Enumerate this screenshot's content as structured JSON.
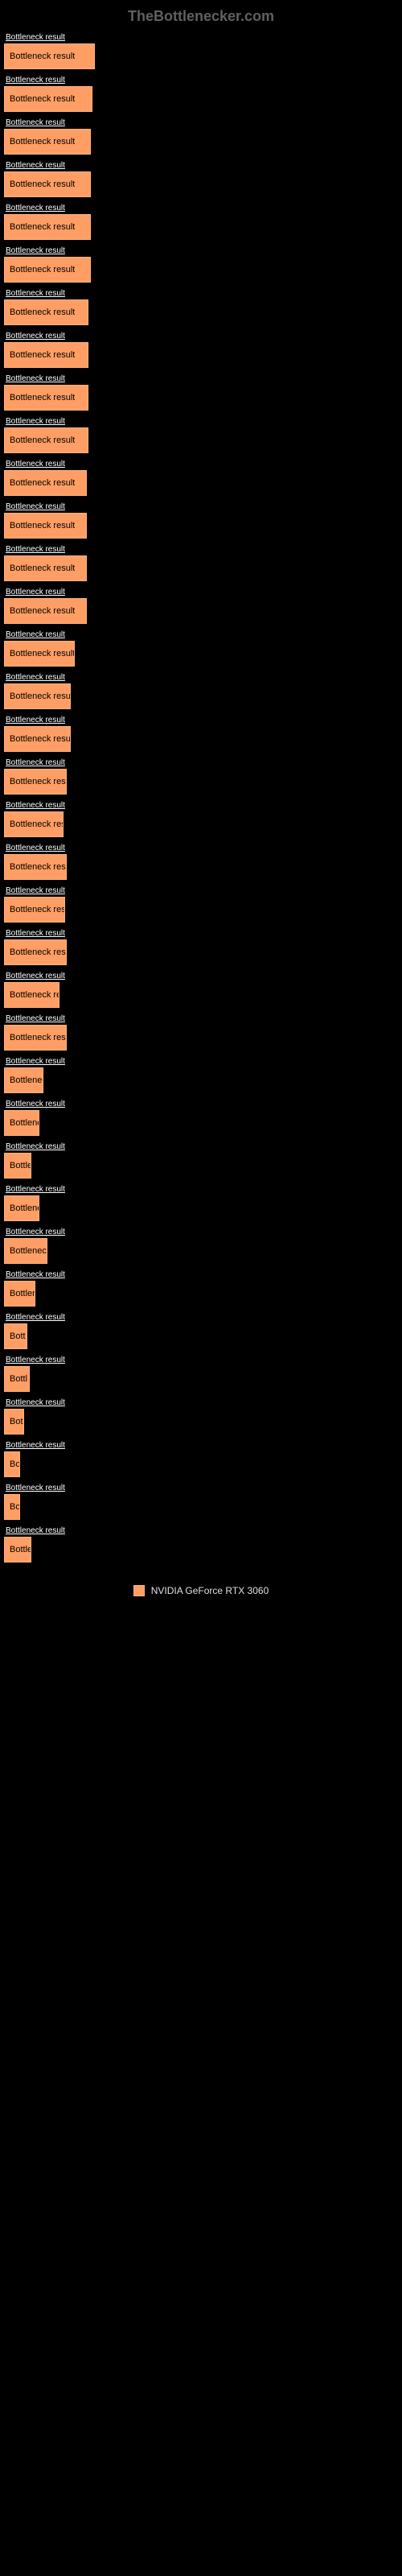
{
  "header": {
    "brand": "TheBottlenecker.com"
  },
  "chart": {
    "type": "bar",
    "bar_color": "#ff9e64",
    "bar_border_color": "#ffb380",
    "background_color": "#000000",
    "link_color": "#ffffff",
    "label_color": "#000000",
    "max_width_percent": 23,
    "bars": [
      {
        "link": "Bottleneck result",
        "label": "Bottleneck result",
        "width": 23
      },
      {
        "link": "Bottleneck result",
        "label": "Bottleneck result",
        "width": 22.5
      },
      {
        "link": "Bottleneck result",
        "label": "Bottleneck result",
        "width": 22
      },
      {
        "link": "Bottleneck result",
        "label": "Bottleneck result",
        "width": 22
      },
      {
        "link": "Bottleneck result",
        "label": "Bottleneck result",
        "width": 22
      },
      {
        "link": "Bottleneck result",
        "label": "Bottleneck result",
        "width": 22
      },
      {
        "link": "Bottleneck result",
        "label": "Bottleneck result",
        "width": 21.5
      },
      {
        "link": "Bottleneck result",
        "label": "Bottleneck result",
        "width": 21.5
      },
      {
        "link": "Bottleneck result",
        "label": "Bottleneck result",
        "width": 21.5
      },
      {
        "link": "Bottleneck result",
        "label": "Bottleneck result",
        "width": 21.5
      },
      {
        "link": "Bottleneck result",
        "label": "Bottleneck result",
        "width": 21
      },
      {
        "link": "Bottleneck result",
        "label": "Bottleneck result",
        "width": 21
      },
      {
        "link": "Bottleneck result",
        "label": "Bottleneck result",
        "width": 21
      },
      {
        "link": "Bottleneck result",
        "label": "Bottleneck result",
        "width": 21
      },
      {
        "link": "Bottleneck result",
        "label": "Bottleneck result",
        "width": 18
      },
      {
        "link": "Bottleneck result",
        "label": "Bottleneck result",
        "width": 17
      },
      {
        "link": "Bottleneck result",
        "label": "Bottleneck result",
        "width": 17
      },
      {
        "link": "Bottleneck result",
        "label": "Bottleneck result",
        "width": 16
      },
      {
        "link": "Bottleneck result",
        "label": "Bottleneck res",
        "width": 15
      },
      {
        "link": "Bottleneck result",
        "label": "Bottleneck result",
        "width": 16
      },
      {
        "link": "Bottleneck result",
        "label": "Bottleneck resul",
        "width": 15.5
      },
      {
        "link": "Bottleneck result",
        "label": "Bottleneck result",
        "width": 16
      },
      {
        "link": "Bottleneck result",
        "label": "Bottleneck res",
        "width": 14
      },
      {
        "link": "Bottleneck result",
        "label": "Bottleneck result",
        "width": 16
      },
      {
        "link": "Bottleneck result",
        "label": "Bottlenec",
        "width": 10
      },
      {
        "link": "Bottleneck result",
        "label": "Bottlene",
        "width": 9
      },
      {
        "link": "Bottleneck result",
        "label": "Bottle",
        "width": 7
      },
      {
        "link": "Bottleneck result",
        "label": "Bottlene",
        "width": 9
      },
      {
        "link": "Bottleneck result",
        "label": "Bottleneck",
        "width": 11
      },
      {
        "link": "Bottleneck result",
        "label": "Bottler",
        "width": 8
      },
      {
        "link": "Bottleneck result",
        "label": "Bott",
        "width": 6
      },
      {
        "link": "Bottleneck result",
        "label": "Bottl",
        "width": 6.5
      },
      {
        "link": "Bottleneck result",
        "label": "Bot",
        "width": 5
      },
      {
        "link": "Bottleneck result",
        "label": "Bo",
        "width": 4
      },
      {
        "link": "Bottleneck result",
        "label": "Bo",
        "width": 4
      },
      {
        "link": "Bottleneck result",
        "label": "Bottle",
        "width": 7
      }
    ]
  },
  "legend": {
    "label": "NVIDIA GeForce RTX 3060",
    "color": "#ff9e64"
  }
}
